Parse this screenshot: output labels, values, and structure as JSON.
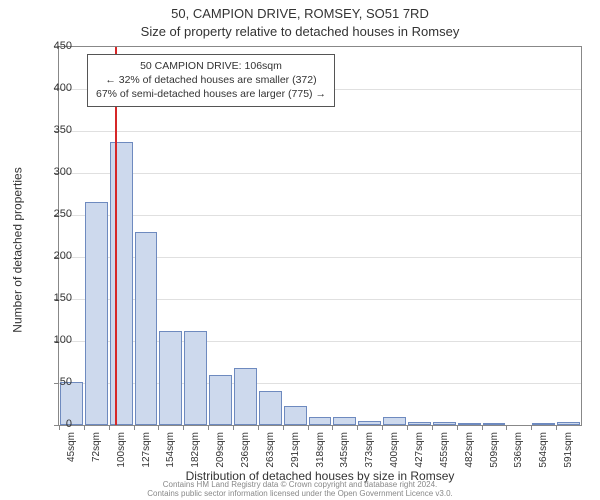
{
  "title": "50, CAMPION DRIVE, ROMSEY, SO51 7RD",
  "subtitle": "Size of property relative to detached houses in Romsey",
  "y_axis_title": "Number of detached properties",
  "x_axis_title": "Distribution of detached houses by size in Romsey",
  "footer_line1": "Contains HM Land Registry data © Crown copyright and database right 2024.",
  "footer_line2": "Contains public sector information licensed under the Open Government Licence v3.0.",
  "chart": {
    "type": "bar",
    "ylim": [
      0,
      450
    ],
    "ytick_step": 50,
    "bar_fill": "#cdd9ed",
    "bar_stroke": "#6e8abf",
    "background_color": "#ffffff",
    "grid_color": "#e0e0e0",
    "axis_color": "#888888",
    "category_bin_width_sqm": 27,
    "bar_rel_width": 0.92,
    "categories": [
      "45sqm",
      "72sqm",
      "100sqm",
      "127sqm",
      "154sqm",
      "182sqm",
      "209sqm",
      "236sqm",
      "263sqm",
      "291sqm",
      "318sqm",
      "345sqm",
      "373sqm",
      "400sqm",
      "427sqm",
      "455sqm",
      "482sqm",
      "509sqm",
      "536sqm",
      "564sqm",
      "591sqm"
    ],
    "values": [
      51,
      266,
      337,
      230,
      112,
      112,
      60,
      68,
      41,
      23,
      9,
      9,
      5,
      9,
      3,
      3,
      2,
      2,
      0,
      2,
      3
    ],
    "marker": {
      "value_sqm": 106,
      "color": "#d62728",
      "line_width": 2
    },
    "callout": {
      "line1": "50 CAMPION DRIVE: 106sqm",
      "line2": "← 32% of detached houses are smaller (372)",
      "line3": "67% of semi-detached houses are larger (775) →",
      "border_color": "#555555",
      "background": "#ffffff",
      "font_size_pt": 10.5
    },
    "title_fontsize": 13,
    "axis_label_fontsize": 12,
    "tick_fontsize": 11,
    "xtick_fontsize": 10
  }
}
